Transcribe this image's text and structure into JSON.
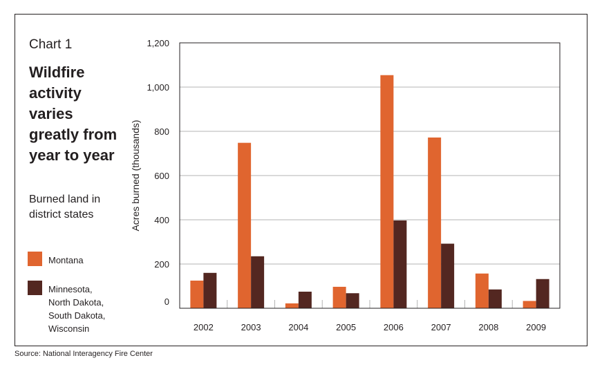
{
  "chart_number": "Chart 1",
  "chart_data": {
    "type": "bar",
    "title": "Wildfire activity varies greatly from year to year",
    "subtitle": "Burned land in district states",
    "xlabel": "",
    "ylabel": "Acres burned (thousands)",
    "ylim": [
      0,
      1200
    ],
    "yticks": [
      "0",
      "200",
      "400",
      "600",
      "800",
      "1,000",
      "1,200"
    ],
    "ytick_values": [
      0,
      200,
      400,
      600,
      800,
      1000,
      1200
    ],
    "grid": true,
    "categories": [
      "2002",
      "2003",
      "2004",
      "2005",
      "2006",
      "2007",
      "2008",
      "2009"
    ],
    "series": [
      {
        "name": "Montana",
        "color": "#e0652f",
        "values": [
          125,
          748,
          22,
          97,
          1054,
          772,
          157,
          33
        ]
      },
      {
        "name": "Minnesota, North Dakota, South Dakota, Wisconsin",
        "color": "#532721",
        "values": [
          160,
          235,
          75,
          68,
          397,
          292,
          85,
          132
        ]
      }
    ]
  },
  "legend": [
    {
      "swatch_color": "#e0652f",
      "lines": [
        "Montana"
      ]
    },
    {
      "swatch_color": "#532721",
      "lines": [
        "Minnesota,",
        "North Dakota,",
        "South Dakota,",
        "Wisconsin"
      ]
    }
  ],
  "source": "Source: National Interagency Fire Center"
}
